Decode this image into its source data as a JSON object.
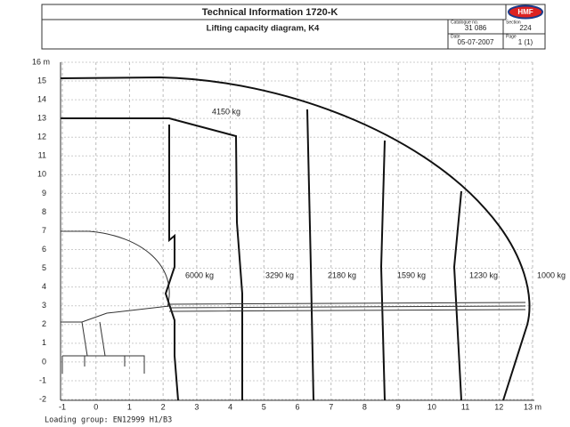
{
  "header": {
    "title": "Technical Information  1720-K",
    "subtitle": "Lifting capacity diagram, K4",
    "catalogue_label": "Catalogue no.",
    "catalogue": "31 086",
    "section_label": "Section",
    "section": "224",
    "date_label": "Date",
    "date": "05-07-2007",
    "page_label": "Page",
    "page": "1 (1)",
    "logo": "HMF"
  },
  "axes": {
    "y_labels": [
      "16 m",
      "15",
      "14",
      "13",
      "12",
      "11",
      "10",
      "9",
      "8",
      "7",
      "6",
      "5",
      "4",
      "3",
      "2",
      "1",
      "0",
      "-1",
      "-2"
    ],
    "x_labels": [
      "-1",
      "0",
      "1",
      "2",
      "3",
      "4",
      "5",
      "6",
      "7",
      "8",
      "9",
      "10",
      "11",
      "12",
      "13 m"
    ]
  },
  "capacities": [
    "4150 kg",
    "6000 kg",
    "3290 kg",
    "2180 kg",
    "1590 kg",
    "1230 kg",
    "1000 kg"
  ],
  "footer": "Loading group: EN12999 H1/B3"
}
